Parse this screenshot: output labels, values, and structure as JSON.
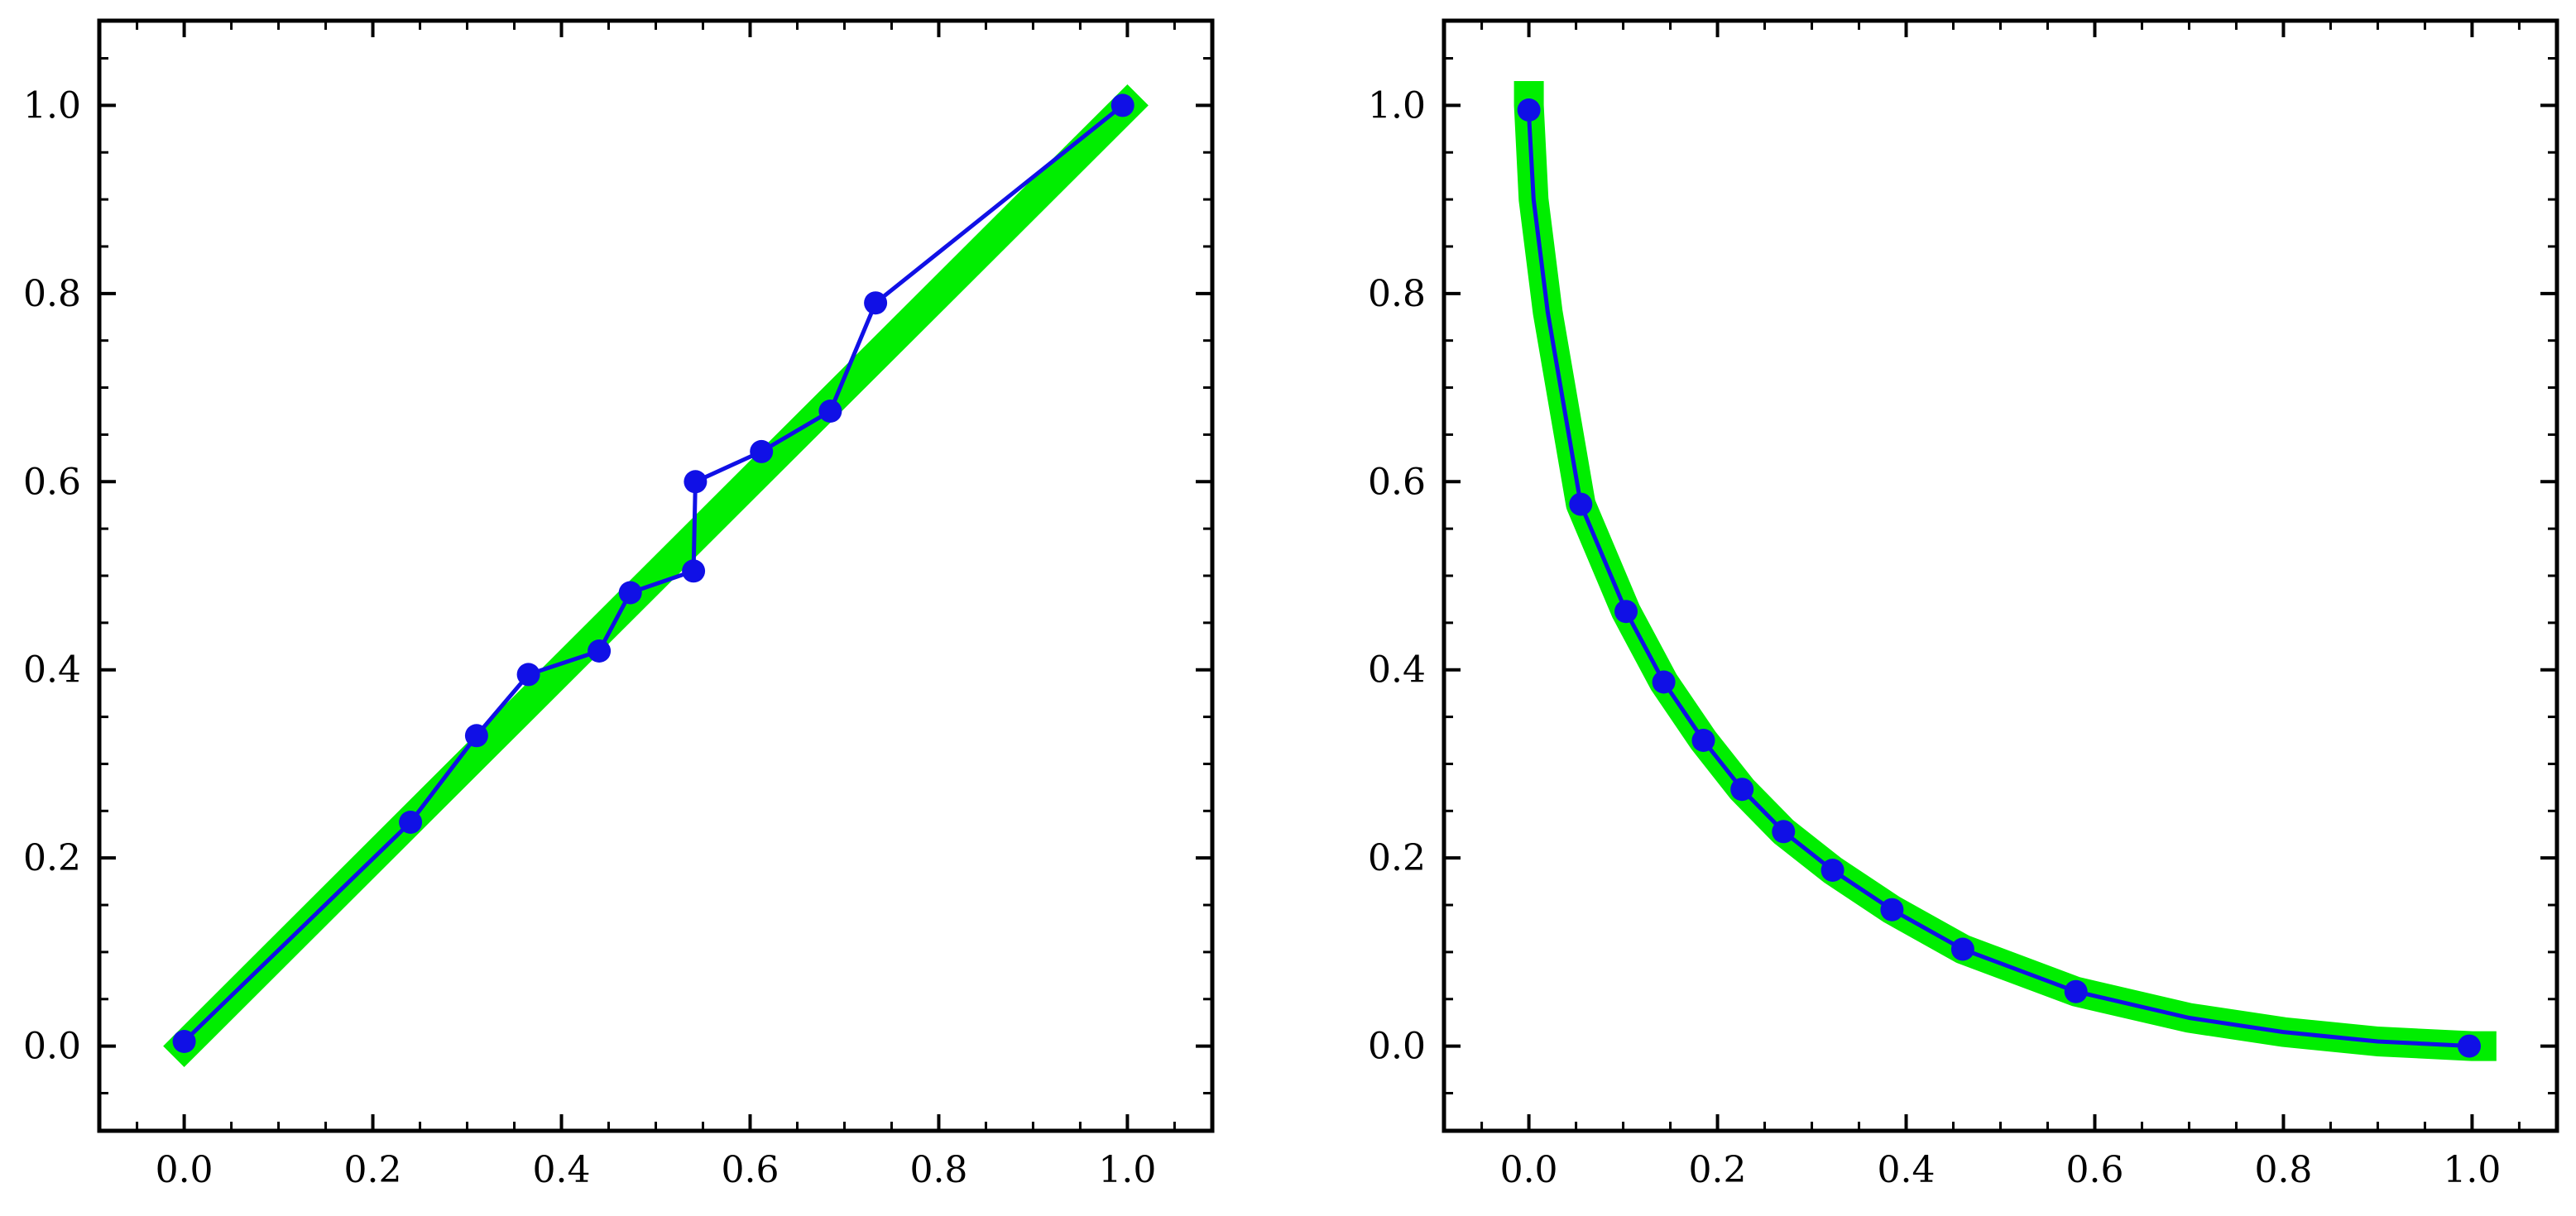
{
  "chart_data": [
    {
      "type": "line",
      "title": "",
      "xlabel": "",
      "ylabel": "",
      "xlim": [
        -0.09,
        1.09
      ],
      "ylim": [
        -0.09,
        1.09
      ],
      "grid": false,
      "xticks": [
        "0.0",
        "0.2",
        "0.4",
        "0.6",
        "0.8",
        "1.0"
      ],
      "yticks": [
        "0.0",
        "0.2",
        "0.4",
        "0.6",
        "0.8",
        "1.0"
      ],
      "series": [
        {
          "kind": "band",
          "color": "#00ee00",
          "x": [
            0,
            1
          ],
          "y": [
            0,
            1
          ]
        },
        {
          "kind": "points-line",
          "color": "#1010e6",
          "x": [
            0.0,
            0.24,
            0.31,
            0.365,
            0.44,
            0.473,
            0.54,
            0.542,
            0.612,
            0.685,
            0.733,
            0.995
          ],
          "y": [
            0.005,
            0.238,
            0.33,
            0.395,
            0.42,
            0.482,
            0.505,
            0.6,
            0.632,
            0.675,
            0.79,
            1.0
          ]
        }
      ]
    },
    {
      "type": "line",
      "title": "",
      "xlabel": "",
      "ylabel": "",
      "xlim": [
        -0.09,
        1.09
      ],
      "ylim": [
        -0.09,
        1.09
      ],
      "grid": false,
      "xticks": [
        "0.0",
        "0.2",
        "0.4",
        "0.6",
        "0.8",
        "1.0"
      ],
      "yticks": [
        "0.0",
        "0.2",
        "0.4",
        "0.6",
        "0.8",
        "1.0"
      ],
      "series": [
        {
          "kind": "band",
          "color": "#00ee00",
          "x": [
            0.0,
            0.0,
            0.005,
            0.02,
            0.055,
            0.103,
            0.143,
            0.185,
            0.226,
            0.27,
            0.322,
            0.385,
            0.46,
            0.58,
            0.7,
            0.8,
            0.9,
            1.0,
            1.01
          ],
          "y": [
            1.01,
            1.0,
            0.9,
            0.78,
            0.576,
            0.462,
            0.387,
            0.325,
            0.273,
            0.228,
            0.187,
            0.145,
            0.103,
            0.058,
            0.03,
            0.015,
            0.005,
            0.0,
            0.0
          ]
        },
        {
          "kind": "line",
          "color": "#1010e6",
          "x": [
            0.0,
            0.0,
            0.005,
            0.02,
            0.055,
            0.103,
            0.143,
            0.185,
            0.226,
            0.27,
            0.322,
            0.385,
            0.46,
            0.58,
            0.7,
            0.8,
            0.9,
            1.0
          ],
          "y": [
            0.995,
            0.99,
            0.9,
            0.78,
            0.576,
            0.462,
            0.387,
            0.325,
            0.273,
            0.228,
            0.187,
            0.145,
            0.103,
            0.058,
            0.03,
            0.015,
            0.005,
            0.0
          ]
        },
        {
          "kind": "points",
          "color": "#1010e6",
          "x": [
            0.0,
            0.055,
            0.103,
            0.143,
            0.185,
            0.226,
            0.27,
            0.322,
            0.385,
            0.46,
            0.58,
            0.997
          ],
          "y": [
            0.995,
            0.576,
            0.462,
            0.387,
            0.325,
            0.273,
            0.228,
            0.187,
            0.145,
            0.103,
            0.058,
            0.0
          ]
        }
      ]
    }
  ]
}
